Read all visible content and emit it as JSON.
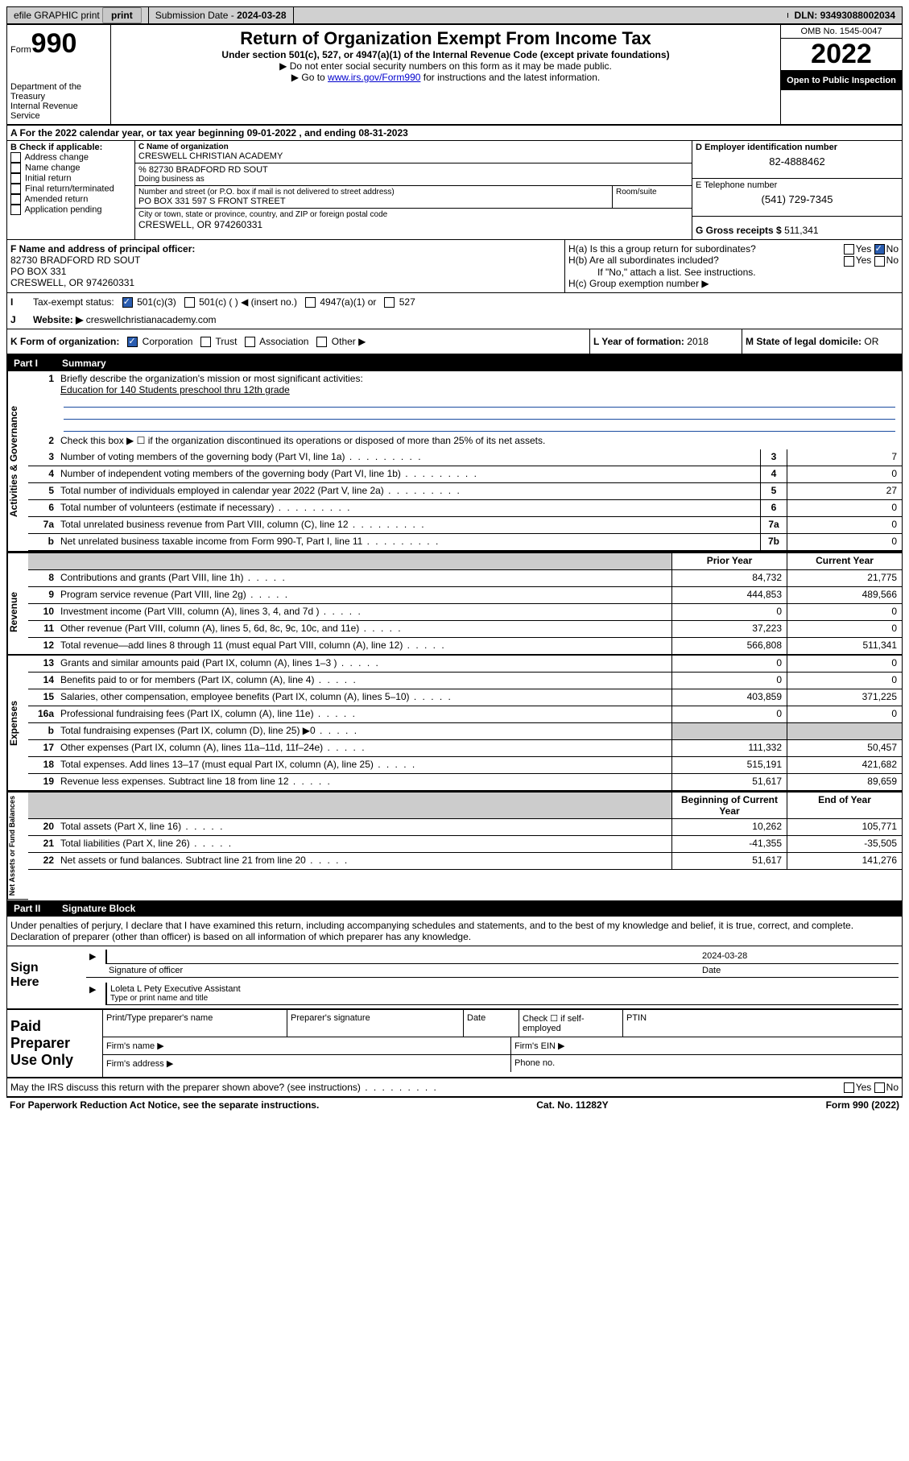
{
  "topbar": {
    "efile": "efile GRAPHIC print",
    "submission_label": "Submission Date -",
    "submission_date": "2024-03-28",
    "dln_label": "DLN:",
    "dln": "93493088002034"
  },
  "header": {
    "form_word": "Form",
    "form_num": "990",
    "dept": "Department of the Treasury",
    "irs": "Internal Revenue Service",
    "title": "Return of Organization Exempt From Income Tax",
    "subtitle": "Under section 501(c), 527, or 4947(a)(1) of the Internal Revenue Code (except private foundations)",
    "instr1": "▶ Do not enter social security numbers on this form as it may be made public.",
    "instr2_pre": "▶ Go to ",
    "instr2_link": "www.irs.gov/Form990",
    "instr2_post": " for instructions and the latest information.",
    "omb": "OMB No. 1545-0047",
    "year": "2022",
    "open": "Open to Public Inspection"
  },
  "lineA": {
    "pre": "A For the 2022 calendar year, or tax year beginning ",
    "begin": "09-01-2022",
    "mid": "   , and ending ",
    "end": "08-31-2023"
  },
  "B": {
    "heading": "B Check if applicable:",
    "items": [
      "Address change",
      "Name change",
      "Initial return",
      "Final return/terminated",
      "Amended return",
      "Application pending"
    ],
    "checked_idx": 5
  },
  "C": {
    "name_label": "C Name of organization",
    "name": "CRESWELL CHRISTIAN ACADEMY",
    "care_of": "% 82730 BRADFORD RD SOUT",
    "dba_label": "Doing business as",
    "addr_label": "Number and street (or P.O. box if mail is not delivered to street address)",
    "room_label": "Room/suite",
    "addr": "PO BOX 331 597 S FRONT STREET",
    "city_label": "City or town, state or province, country, and ZIP or foreign postal code",
    "city": "CRESWELL, OR  974260331"
  },
  "D": {
    "label": "D Employer identification number",
    "value": "82-4888462"
  },
  "E": {
    "label": "E Telephone number",
    "value": "(541) 729-7345"
  },
  "G": {
    "label": "G Gross receipts $",
    "value": "511,341"
  },
  "F": {
    "label": "F Name and address of principal officer:",
    "line1": "82730 BRADFORD RD SOUT",
    "line2": "PO BOX 331",
    "line3": "CRESWELL, OR  974260331"
  },
  "H": {
    "a": "H(a)  Is this a group return for subordinates?",
    "b": "H(b)  Are all subordinates included?",
    "b_note": "If \"No,\" attach a list. See instructions.",
    "c": "H(c)  Group exemption number ▶",
    "yes": "Yes",
    "no": "No"
  },
  "I": {
    "label": "Tax-exempt status:",
    "opts": [
      "501(c)(3)",
      "501(c) (  ) ◀ (insert no.)",
      "4947(a)(1) or",
      "527"
    ],
    "checked_idx": 0
  },
  "J": {
    "label": "Website: ▶",
    "value": "creswellchristianacademy.com"
  },
  "K": {
    "label": "K Form of organization:",
    "opts": [
      "Corporation",
      "Trust",
      "Association",
      "Other ▶"
    ],
    "checked_idx": 0
  },
  "L": {
    "label": "L Year of formation:",
    "value": "2018"
  },
  "M": {
    "label": "M State of legal domicile:",
    "value": "OR"
  },
  "part1": {
    "num": "Part I",
    "title": "Summary"
  },
  "summary": {
    "q1": "Briefly describe the organization's mission or most significant activities:",
    "mission": "Education for 140 Students preschool thru 12th grade",
    "q2": "Check this box ▶ ☐  if the organization discontinued its operations or disposed of more than 25% of its net assets.",
    "rows_gov": [
      {
        "n": "3",
        "d": "Number of voting members of the governing body (Part VI, line 1a)",
        "box": "3",
        "v": "7"
      },
      {
        "n": "4",
        "d": "Number of independent voting members of the governing body (Part VI, line 1b)",
        "box": "4",
        "v": "0"
      },
      {
        "n": "5",
        "d": "Total number of individuals employed in calendar year 2022 (Part V, line 2a)",
        "box": "5",
        "v": "27"
      },
      {
        "n": "6",
        "d": "Total number of volunteers (estimate if necessary)",
        "box": "6",
        "v": "0"
      },
      {
        "n": "7a",
        "d": "Total unrelated business revenue from Part VIII, column (C), line 12",
        "box": "7a",
        "v": "0"
      },
      {
        "n": "b",
        "d": "Net unrelated business taxable income from Form 990-T, Part I, line 11",
        "box": "7b",
        "v": "0"
      }
    ],
    "hdr_prior": "Prior Year",
    "hdr_curr": "Current Year",
    "rows_rev": [
      {
        "n": "8",
        "d": "Contributions and grants (Part VIII, line 1h)",
        "p": "84,732",
        "c": "21,775"
      },
      {
        "n": "9",
        "d": "Program service revenue (Part VIII, line 2g)",
        "p": "444,853",
        "c": "489,566"
      },
      {
        "n": "10",
        "d": "Investment income (Part VIII, column (A), lines 3, 4, and 7d )",
        "p": "0",
        "c": "0"
      },
      {
        "n": "11",
        "d": "Other revenue (Part VIII, column (A), lines 5, 6d, 8c, 9c, 10c, and 11e)",
        "p": "37,223",
        "c": "0"
      },
      {
        "n": "12",
        "d": "Total revenue—add lines 8 through 11 (must equal Part VIII, column (A), line 12)",
        "p": "566,808",
        "c": "511,341"
      }
    ],
    "rows_exp": [
      {
        "n": "13",
        "d": "Grants and similar amounts paid (Part IX, column (A), lines 1–3 )",
        "p": "0",
        "c": "0"
      },
      {
        "n": "14",
        "d": "Benefits paid to or for members (Part IX, column (A), line 4)",
        "p": "0",
        "c": "0"
      },
      {
        "n": "15",
        "d": "Salaries, other compensation, employee benefits (Part IX, column (A), lines 5–10)",
        "p": "403,859",
        "c": "371,225"
      },
      {
        "n": "16a",
        "d": "Professional fundraising fees (Part IX, column (A), line 11e)",
        "p": "0",
        "c": "0"
      },
      {
        "n": "b",
        "d": "Total fundraising expenses (Part IX, column (D), line 25) ▶0",
        "p": "",
        "c": "",
        "gray": true
      },
      {
        "n": "17",
        "d": "Other expenses (Part IX, column (A), lines 11a–11d, 11f–24e)",
        "p": "111,332",
        "c": "50,457"
      },
      {
        "n": "18",
        "d": "Total expenses. Add lines 13–17 (must equal Part IX, column (A), line 25)",
        "p": "515,191",
        "c": "421,682"
      },
      {
        "n": "19",
        "d": "Revenue less expenses. Subtract line 18 from line 12",
        "p": "51,617",
        "c": "89,659"
      }
    ],
    "hdr_beg": "Beginning of Current Year",
    "hdr_end": "End of Year",
    "rows_net": [
      {
        "n": "20",
        "d": "Total assets (Part X, line 16)",
        "p": "10,262",
        "c": "105,771"
      },
      {
        "n": "21",
        "d": "Total liabilities (Part X, line 26)",
        "p": "-41,355",
        "c": "-35,505"
      },
      {
        "n": "22",
        "d": "Net assets or fund balances. Subtract line 21 from line 20",
        "p": "51,617",
        "c": "141,276"
      }
    ],
    "vert": {
      "gov": "Activities & Governance",
      "rev": "Revenue",
      "exp": "Expenses",
      "net": "Net Assets or Fund Balances"
    }
  },
  "part2": {
    "num": "Part II",
    "title": "Signature Block"
  },
  "penalties": "Under penalties of perjury, I declare that I have examined this return, including accompanying schedules and statements, and to the best of my knowledge and belief, it is true, correct, and complete. Declaration of preparer (other than officer) is based on all information of which preparer has any knowledge.",
  "sign": {
    "here": "Sign Here",
    "sig_label": "Signature of officer",
    "date_label": "Date",
    "date": "2024-03-28",
    "name": "Loleta L Pety  Executive Assistant",
    "name_label": "Type or print name and title"
  },
  "preparer": {
    "title": "Paid Preparer Use Only",
    "h1": "Print/Type preparer's name",
    "h2": "Preparer's signature",
    "h3": "Date",
    "h4_pre": "Check ☐ if self-employed",
    "h5": "PTIN",
    "firm_name": "Firm's name    ▶",
    "firm_ein": "Firm's EIN ▶",
    "firm_addr": "Firm's address ▶",
    "phone": "Phone no."
  },
  "footer": {
    "discuss": "May the IRS discuss this return with the preparer shown above? (see instructions)",
    "yes": "Yes",
    "no": "No",
    "paperwork": "For Paperwork Reduction Act Notice, see the separate instructions.",
    "cat": "Cat. No. 11282Y",
    "form": "Form 990 (2022)"
  }
}
